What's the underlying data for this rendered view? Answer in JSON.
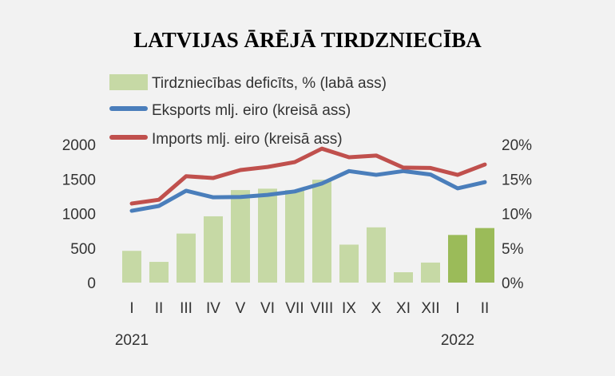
{
  "chart_data": {
    "type": "bar+line",
    "title": "LATVIJAS ĀRĒJĀ TIRDZNIECĪBA",
    "categories": [
      "I",
      "II",
      "III",
      "IV",
      "V",
      "VI",
      "VII",
      "VIII",
      "IX",
      "X",
      "XI",
      "XII",
      "I",
      "II"
    ],
    "year_labels": [
      {
        "label": "2021",
        "category_index": 0
      },
      {
        "label": "2022",
        "category_index": 12
      }
    ],
    "left_axis": {
      "ylim": [
        0,
        2000
      ],
      "ticks": [
        "0",
        "500",
        "1000",
        "1500",
        "2000"
      ]
    },
    "right_axis": {
      "ylim": [
        0,
        20
      ],
      "ticks": [
        "0%",
        "5%",
        "10%",
        "15%",
        "20%"
      ]
    },
    "series": [
      {
        "name": "Tirdzniecības deficīts, % (labā ass)",
        "kind": "bar",
        "axis": "right",
        "color": "#c6d9a5",
        "highlight_color": "#9bbb59",
        "highlight_indices": [
          12,
          13
        ],
        "values": [
          4.6,
          3.0,
          7.1,
          9.6,
          13.4,
          13.6,
          13.4,
          14.9,
          5.5,
          8.0,
          1.5,
          2.9,
          6.9,
          7.9
        ]
      },
      {
        "name": "Eksports mlj. eiro (kreisā ass)",
        "kind": "line",
        "axis": "left",
        "color": "#4a7ebb",
        "values": [
          1040,
          1110,
          1330,
          1235,
          1240,
          1270,
          1320,
          1435,
          1615,
          1560,
          1615,
          1565,
          1365,
          1455
        ]
      },
      {
        "name": "Imports mlj. eiro (kreisā ass)",
        "kind": "line",
        "axis": "left",
        "color": "#c0504d",
        "values": [
          1145,
          1200,
          1540,
          1515,
          1630,
          1675,
          1745,
          1940,
          1815,
          1840,
          1665,
          1660,
          1560,
          1710
        ]
      }
    ],
    "legend": "top-left",
    "grid": false
  }
}
